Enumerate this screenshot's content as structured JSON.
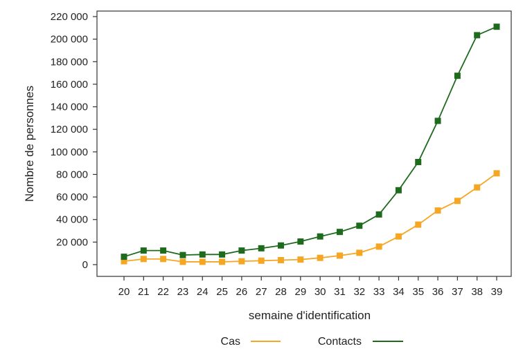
{
  "chart_data": {
    "type": "line",
    "title": "",
    "xlabel": "semaine d'identification",
    "ylabel": "Nombre de personnes",
    "x": [
      20,
      21,
      22,
      23,
      24,
      25,
      26,
      27,
      28,
      29,
      30,
      31,
      32,
      33,
      34,
      35,
      36,
      37,
      38,
      39
    ],
    "ylim": [
      0,
      220000
    ],
    "yticks": [
      0,
      20000,
      40000,
      60000,
      80000,
      100000,
      120000,
      140000,
      160000,
      180000,
      200000,
      220000
    ],
    "ytick_labels": [
      "0",
      "20 000",
      "40 000",
      "60 000",
      "80 000",
      "100 000",
      "120 000",
      "140 000",
      "160 000",
      "180 000",
      "200 000",
      "220 000"
    ],
    "grid": false,
    "legend_position": "bottom",
    "series": [
      {
        "name": "Cas",
        "color": "#f5a623",
        "marker": "square",
        "values": [
          3000,
          5000,
          5000,
          2500,
          2500,
          2500,
          3000,
          3500,
          4000,
          4500,
          6000,
          8000,
          10500,
          16000,
          25000,
          35500,
          48000,
          56500,
          68500,
          81000
        ]
      },
      {
        "name": "Contacts",
        "color": "#1e6b1e",
        "marker": "square",
        "values": [
          7000,
          12500,
          12500,
          8500,
          9000,
          9000,
          12500,
          14500,
          17000,
          20500,
          25000,
          29000,
          34500,
          44500,
          66000,
          91000,
          127500,
          167500,
          203500,
          211000
        ]
      }
    ]
  }
}
